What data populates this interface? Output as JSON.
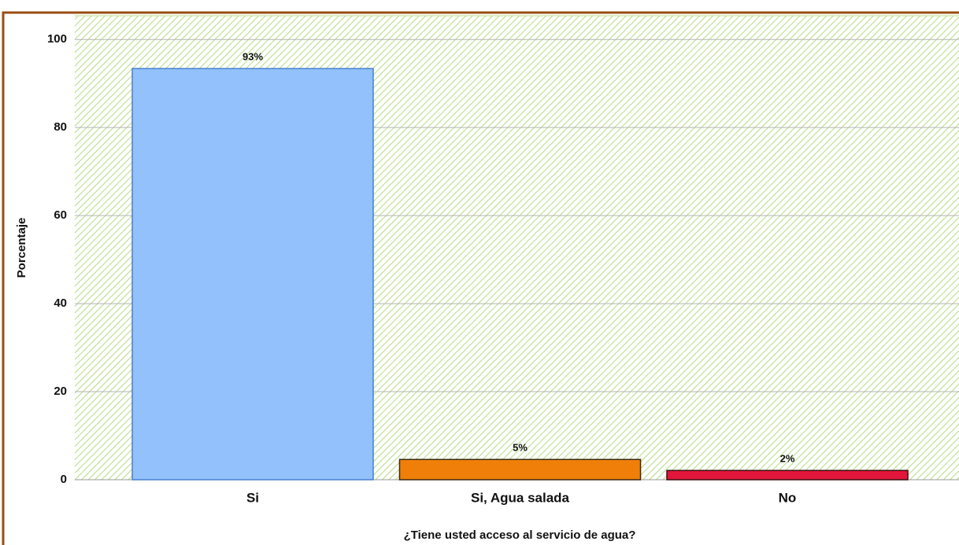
{
  "chart_data": {
    "type": "bar",
    "categories": [
      "Si",
      "Si, Agua salada",
      "No"
    ],
    "values": [
      93.4,
      4.6,
      2.1
    ],
    "value_labels": [
      "93%",
      "5%",
      "2%"
    ],
    "colors": [
      "#92c1fb",
      "#f07f09",
      "#e2163b"
    ],
    "xlabel": "¿Tiene usted acceso al servicio de agua?",
    "ylabel": "Porcentaje",
    "ylim": [
      0,
      105.4
    ],
    "yticks": [
      0,
      20,
      40,
      60,
      80,
      100
    ],
    "grid": true
  }
}
